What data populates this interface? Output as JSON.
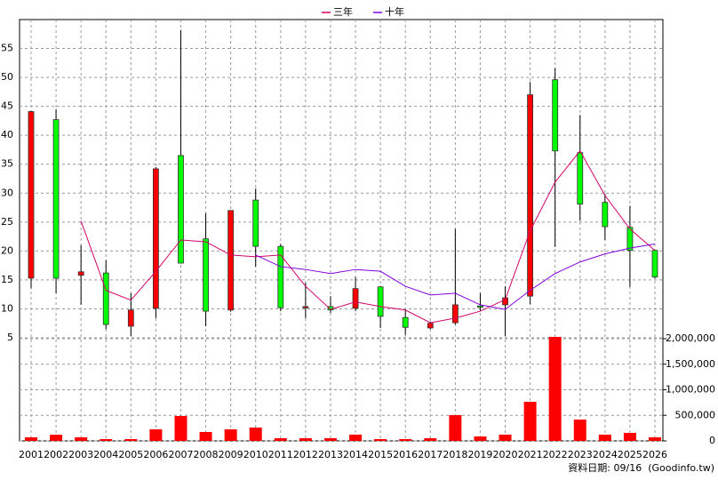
{
  "chart_data": {
    "type": "candlestick",
    "categories": [
      "2001",
      "2002",
      "2003",
      "2004",
      "2005",
      "2006",
      "2007",
      "2008",
      "2009",
      "2010",
      "2011",
      "2012",
      "2013",
      "2014",
      "2015",
      "2016",
      "2017",
      "2018",
      "2019",
      "2020",
      "2021",
      "2022",
      "2023",
      "2024",
      "2025",
      "2026"
    ],
    "open": [
      15.3,
      42.7,
      15.8,
      16.2,
      7.0,
      10.1,
      36.5,
      22.1,
      9.8,
      28.8,
      20.8,
      10.3,
      10.4,
      10.1,
      13.8,
      8.5,
      6.7,
      7.6,
      10.5,
      10.7,
      12.2,
      49.6,
      37.0,
      28.4,
      24.1,
      20.1
    ],
    "high": [
      44.2,
      44.5,
      21.0,
      18.4,
      12.7,
      34.5,
      58.2,
      26.5,
      27.0,
      30.8,
      21.2,
      14.5,
      12.2,
      15.5,
      13.9,
      9.9,
      7.8,
      23.8,
      12.7,
      13.9,
      49.2,
      51.6,
      43.5,
      29.9,
      27.8,
      20.1
    ],
    "low": [
      13.5,
      12.7,
      10.7,
      6.5,
      5.3,
      8.4,
      17.9,
      7.0,
      9.5,
      17.3,
      9.6,
      8.4,
      9.3,
      9.6,
      6.7,
      5.5,
      6.5,
      7.3,
      9.6,
      5.3,
      10.8,
      20.7,
      25.2,
      21.9,
      13.8,
      15.2
    ],
    "close": [
      44.1,
      15.3,
      16.4,
      7.3,
      9.8,
      34.2,
      17.9,
      9.6,
      27.0,
      20.8,
      10.2,
      10.4,
      9.8,
      13.5,
      8.7,
      6.8,
      7.5,
      10.7,
      10.4,
      11.9,
      47.0,
      37.3,
      28.1,
      24.2,
      20.1,
      15.5
    ],
    "up_color": "#ff0000",
    "down_color": "#00ff00",
    "series": [
      {
        "name": "三年",
        "color": "#d4006a",
        "values": [
          null,
          null,
          25.2,
          13.2,
          11.5,
          16.5,
          21.9,
          21.6,
          19.3,
          19.0,
          19.3,
          13.9,
          9.9,
          11.2,
          10.4,
          9.8,
          7.6,
          8.4,
          9.6,
          11.6,
          23.5,
          31.9,
          37.3,
          29.6,
          23.8,
          20.1
        ]
      },
      {
        "name": "十年",
        "color": "#8000e0",
        "values": [
          null,
          null,
          null,
          null,
          null,
          null,
          null,
          null,
          null,
          19.3,
          17.3,
          16.8,
          16.1,
          16.8,
          16.5,
          13.9,
          12.4,
          12.7,
          10.7,
          9.9,
          13.2,
          16.1,
          18.1,
          19.5,
          20.5,
          21.2
        ]
      }
    ],
    "volume": {
      "color": "#ff0000",
      "axis": "y2",
      "values": [
        70000,
        120000,
        70000,
        35000,
        35000,
        226000,
        487000,
        174000,
        226000,
        261000,
        52000,
        52000,
        52000,
        122000,
        35000,
        35000,
        52000,
        504000,
        87000,
        122000,
        765000,
        2035000,
        417000,
        122000,
        157000,
        70000
      ]
    },
    "ylim": [
      5,
      60
    ],
    "yticks": [
      5,
      10,
      15,
      20,
      25,
      30,
      35,
      40,
      45,
      50,
      55
    ],
    "y2lim": [
      0,
      2000000
    ],
    "y2ticks": [
      0,
      {
        "value": 500000,
        "label": "500,000"
      },
      {
        "value": 1000000,
        "label": "1,000,000"
      },
      {
        "value": 1500000,
        "label": "1,500,000"
      },
      {
        "value": 2000000,
        "label": "2,000,000"
      }
    ],
    "grid": true,
    "footnote": "資料日期: 09/16  (Goodinfo.tw)"
  }
}
